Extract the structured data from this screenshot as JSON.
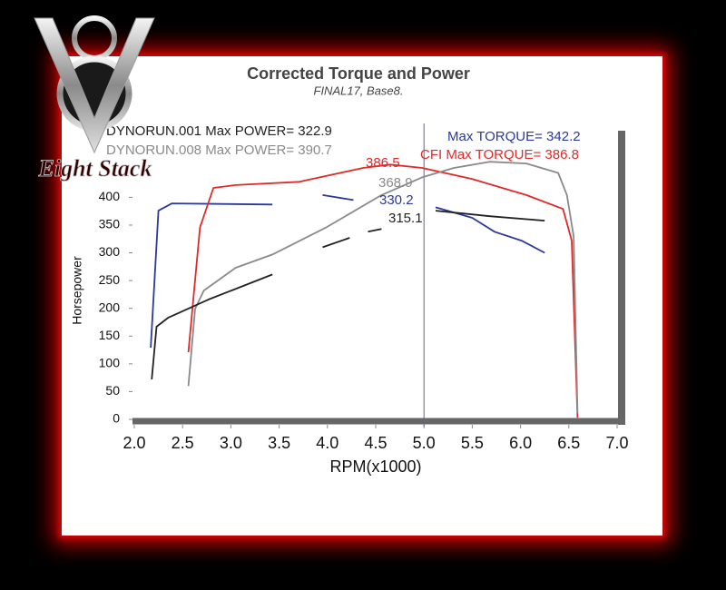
{
  "chart_data": {
    "type": "line",
    "title": "Corrected Torque and Power",
    "subtitle": "FINAL17, Base8.",
    "xlabel": "RPM(x1000)",
    "ylabel": "Horsepower",
    "xlim": [
      2.0,
      7.0
    ],
    "ylim": [
      0,
      520
    ],
    "xticks": [
      {
        "value": 2,
        "label": "2.0"
      },
      {
        "value": 2.5,
        "label": "2.5"
      },
      {
        "value": 3,
        "label": "3.0"
      },
      {
        "value": 3.5,
        "label": "3.5"
      },
      {
        "value": 4,
        "label": "4.0"
      },
      {
        "value": 4.5,
        "label": "4.5"
      },
      {
        "value": 5,
        "label": "5.0"
      },
      {
        "value": 5.5,
        "label": "5.5"
      },
      {
        "value": 6,
        "label": "6.0"
      },
      {
        "value": 6.5,
        "label": "6.5"
      },
      {
        "value": 7,
        "label": "7.0"
      }
    ],
    "yticks": [
      0,
      50,
      100,
      150,
      200,
      250,
      300,
      350,
      400
    ],
    "vline": 5,
    "series": [
      {
        "color": "#2b3a9a",
        "x": [
          2.17,
          2.25,
          2.39,
          3.43,
          null,
          3.95,
          4.27,
          null,
          5.12,
          5.5,
          5.73,
          6.01,
          6.25
        ],
        "values": [
          129,
          376,
          389,
          387,
          null,
          404,
          395,
          null,
          382,
          363,
          338,
          322,
          300
        ]
      },
      {
        "color": "#e02a2a",
        "x": [
          2.56,
          2.68,
          2.82,
          3.05,
          3.71,
          4.37,
          4.65,
          4.98,
          5.5,
          6.06,
          6.44,
          6.53,
          6.59
        ],
        "values": [
          121,
          346,
          417,
          422,
          428,
          453,
          459,
          453,
          433,
          404,
          379,
          322,
          3
        ]
      },
      {
        "color": "#8a8a8a",
        "x": [
          2.56,
          2.63,
          2.72,
          3.05,
          3.43,
          3.99,
          4.56,
          4.98,
          5.31,
          5.68,
          6.06,
          6.39,
          6.48,
          6.55,
          6.59
        ],
        "values": [
          60,
          199,
          232,
          273,
          297,
          346,
          404,
          436,
          453,
          464,
          461,
          444,
          404,
          330,
          11
        ]
      },
      {
        "color": "#222222",
        "x": [
          2.18,
          2.23,
          2.35,
          2.77,
          3.43,
          null,
          3.95,
          4.23,
          null,
          4.42,
          4.56,
          null,
          5.12,
          5.68,
          6.25
        ],
        "values": [
          72,
          167,
          183,
          216,
          261,
          null,
          310,
          327,
          null,
          338,
          343,
          null,
          376,
          366,
          358
        ]
      }
    ],
    "annotations": [
      {
        "text": "DYNORUN.001 Max POWER= 322.9",
        "color": "#222222"
      },
      {
        "text": "DYNORUN.008 Max POWER= 390.7",
        "color": "#8a8a8a"
      },
      {
        "text": "Max TORQUE= 342.2",
        "color": "#2b3a9a"
      },
      {
        "text": "CFI Max TORQUE= 386.8",
        "color": "#e02a2a"
      },
      {
        "text": "386.5",
        "color": "#e02a2a"
      },
      {
        "text": "368.9",
        "color": "#8a8a8a"
      },
      {
        "text": "330.2",
        "color": "#2b3a9a"
      },
      {
        "text": "315.1",
        "color": "#222222"
      }
    ]
  },
  "logo": {
    "text": "Eight Stack"
  }
}
